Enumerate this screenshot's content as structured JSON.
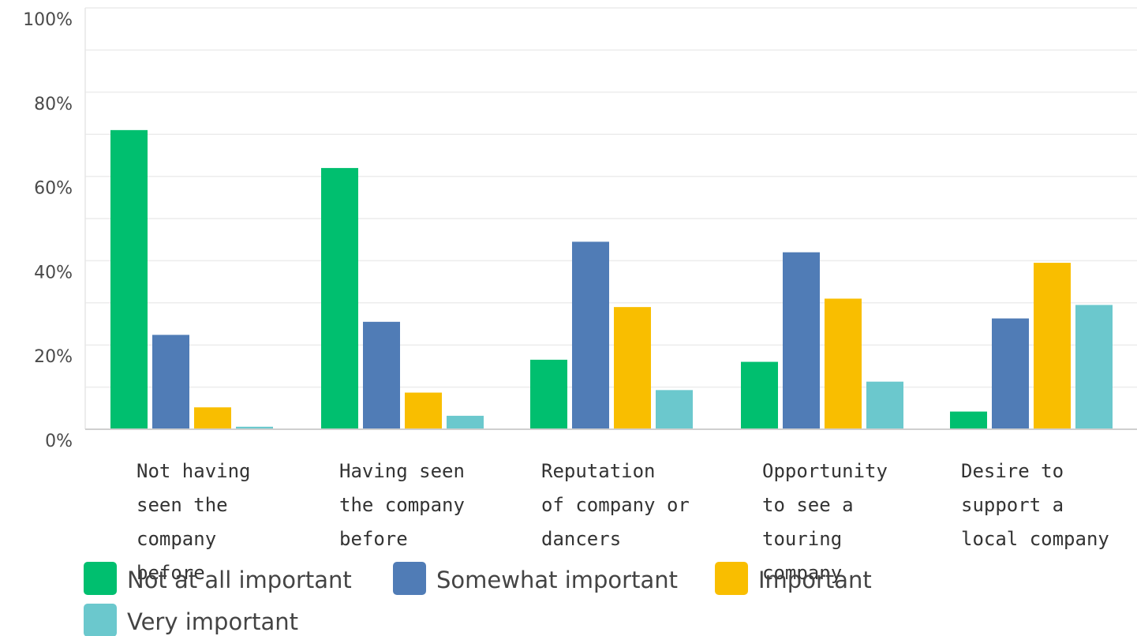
{
  "chart_data": {
    "type": "bar",
    "categories": [
      "Not having seen the company before",
      "Having seen the company before",
      "Reputation of company or dancers",
      "Opportunity to see a touring company",
      "Desire to support a local company"
    ],
    "category_lines": [
      [
        "Not having",
        "seen the",
        "company",
        "before"
      ],
      [
        "Having seen",
        "the company",
        "before"
      ],
      [
        "Reputation",
        "of company or",
        "dancers"
      ],
      [
        "Opportunity",
        "to see a",
        "touring",
        "company"
      ],
      [
        "Desire to",
        "support a",
        "local company"
      ]
    ],
    "series": [
      {
        "name": "Not at all important",
        "color": "#00bf6f",
        "values": [
          71,
          62,
          16.5,
          16,
          4.2
        ]
      },
      {
        "name": "Somewhat important",
        "color": "#507cb6",
        "values": [
          22.4,
          25.5,
          44.5,
          42,
          26.3
        ]
      },
      {
        "name": "Important",
        "color": "#f9be00",
        "values": [
          5.2,
          8.7,
          29,
          31,
          39.5
        ]
      },
      {
        "name": "Very important",
        "color": "#6bc8cd",
        "values": [
          0.6,
          3.2,
          9.3,
          11.3,
          29.5
        ]
      }
    ],
    "yticks": [
      "100%",
      "80%",
      "60%",
      "40%",
      "20%",
      "0%"
    ],
    "ytick_values": [
      100,
      80,
      60,
      40,
      20,
      0
    ],
    "ylim": [
      0,
      100
    ],
    "grid": true,
    "legend_position": "bottom-left"
  }
}
